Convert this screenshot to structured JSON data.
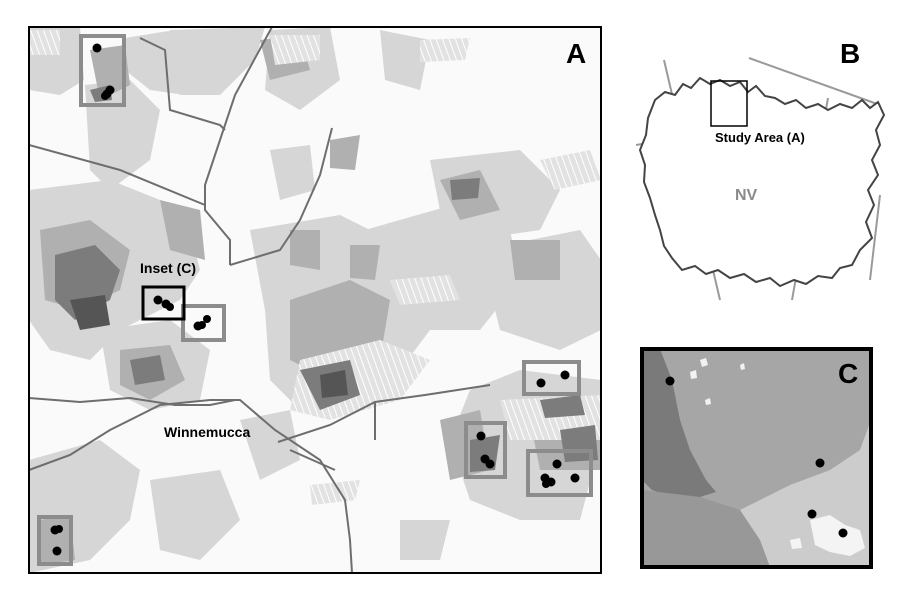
{
  "panels": {
    "a": {
      "letter": "A"
    },
    "b": {
      "letter": "B",
      "state_label": "NV",
      "study_area_label": "Study Area (A)"
    },
    "c": {
      "letter": "C"
    }
  },
  "map_labels": {
    "inset_label": "Inset (C)",
    "city_label": "Winnemucca"
  },
  "colors": {
    "frame": "#000000",
    "site_box": "#8c8c8c",
    "road": "#6e6e6e",
    "light_patch": "#d9d9d9",
    "mid_patch": "#b3b3b3",
    "dark_patch": "#7a7a7a",
    "point": "#000000"
  }
}
